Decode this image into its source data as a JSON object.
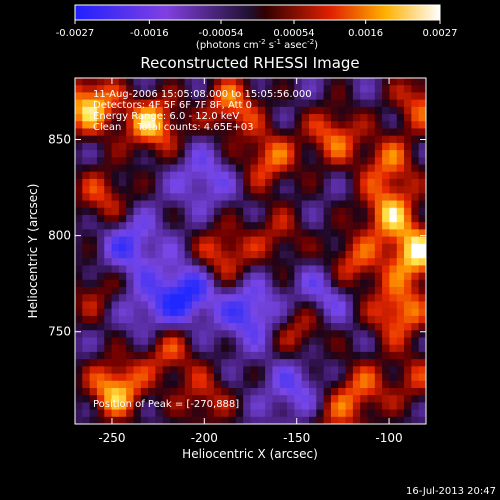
{
  "chart_data": {
    "type": "heatmap",
    "title": "Reconstructed RHESSI Image",
    "xlabel": "Heliocentric X (arcsec)",
    "ylabel": "Heliocentric Y (arcsec)",
    "xlim": [
      -270,
      -80
    ],
    "ylim": [
      702,
      882
    ],
    "x_ticks": [
      {
        "value": -250,
        "label": "-250"
      },
      {
        "value": -200,
        "label": "-200"
      },
      {
        "value": -150,
        "label": "-150"
      },
      {
        "value": -100,
        "label": "-100"
      }
    ],
    "y_ticks": [
      {
        "value": 750,
        "label": "750"
      },
      {
        "value": 800,
        "label": "800"
      },
      {
        "value": 850,
        "label": "850"
      }
    ],
    "annotations": {
      "time_range": "11-Aug-2006 15:05:08.000 to 15:05:56.000",
      "detectors": "Detectors: 4F 5F 6F 7F 8F, Att 0",
      "energy": "Energy Range: 6.0 - 12.0 keV",
      "clean": "Clean     Total counts: 4.65E+03",
      "peak": "Position of Peak = [-270,888]"
    },
    "colorbar": {
      "min": -0.0027,
      "max": 0.0027,
      "tick_labels": [
        "-0.0027",
        "-0.0016",
        "-0.00054",
        "0.00054",
        "0.0016",
        "0.0027"
      ],
      "tick_values": [
        -0.0027,
        -0.0016,
        -0.00054,
        0.00054,
        0.0016,
        0.0027
      ],
      "unit_label": "(photons cm",
      "unit_exp1": "-2",
      "unit_mid": " s",
      "unit_exp2": "-1",
      "unit_mid2": " asec",
      "unit_exp3": "-2",
      "unit_end": ")"
    },
    "hotspots": [
      {
        "x": -262,
        "y": 868,
        "v": 0.0027
      },
      {
        "x": -228,
        "y": 858,
        "v": 0.0025
      },
      {
        "x": -185,
        "y": 868,
        "v": 0.002
      },
      {
        "x": -165,
        "y": 840,
        "v": 0.0019
      },
      {
        "x": -130,
        "y": 852,
        "v": 0.0019
      },
      {
        "x": -100,
        "y": 838,
        "v": 0.0017
      },
      {
        "x": -255,
        "y": 820,
        "v": 0.0016
      },
      {
        "x": -100,
        "y": 812,
        "v": 0.0022
      },
      {
        "x": -85,
        "y": 790,
        "v": 0.0027
      },
      {
        "x": -95,
        "y": 760,
        "v": 0.0022
      },
      {
        "x": -120,
        "y": 785,
        "v": 0.0018
      },
      {
        "x": -190,
        "y": 790,
        "v": 0.0018
      },
      {
        "x": -160,
        "y": 800,
        "v": 0.0012
      },
      {
        "x": -148,
        "y": 752,
        "v": 0.0015
      },
      {
        "x": -248,
        "y": 720,
        "v": 0.0026
      },
      {
        "x": -220,
        "y": 740,
        "v": 0.0016
      },
      {
        "x": -200,
        "y": 715,
        "v": 0.0014
      },
      {
        "x": -115,
        "y": 720,
        "v": 0.0016
      },
      {
        "x": -130,
        "y": 705,
        "v": 0.0012
      },
      {
        "x": -260,
        "y": 770,
        "v": 0.0011
      },
      {
        "x": -82,
        "y": 870,
        "v": 0.0018
      },
      {
        "x": -85,
        "y": 725,
        "v": 0.0012
      }
    ],
    "coldspots": [
      {
        "x": -210,
        "y": 770,
        "v": -0.0022
      },
      {
        "x": -240,
        "y": 795,
        "v": -0.0016
      },
      {
        "x": -175,
        "y": 760,
        "v": -0.0018
      },
      {
        "x": -135,
        "y": 770,
        "v": -0.0014
      },
      {
        "x": -200,
        "y": 830,
        "v": -0.0012
      },
      {
        "x": -150,
        "y": 720,
        "v": -0.0013
      },
      {
        "x": -230,
        "y": 760,
        "v": -0.0011
      }
    ]
  },
  "footer": {
    "timestamp": "16-Jul-2013 20:47"
  }
}
